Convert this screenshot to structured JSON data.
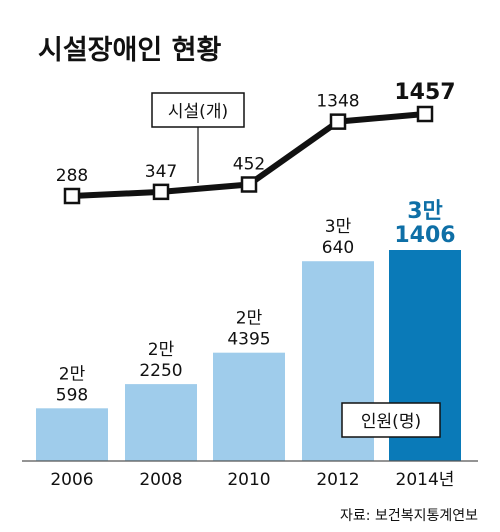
{
  "title": "시설장애인 현황",
  "source": "자료: 보건복지통계연보",
  "chart_data": [
    {
      "type": "bar",
      "series_label": "인원(명)",
      "categories": [
        "2006",
        "2008",
        "2010",
        "2012",
        "2014년"
      ],
      "values": [
        20598,
        22250,
        24395,
        30640,
        31406
      ],
      "value_labels": [
        [
          "2만",
          "598"
        ],
        [
          "2만",
          "2250"
        ],
        [
          "2만",
          "4395"
        ],
        [
          "3만",
          "640"
        ],
        [
          "3만",
          "1406"
        ]
      ],
      "colors": [
        "#9fcceb",
        "#9fcceb",
        "#9fcceb",
        "#9fcceb",
        "#0a7ab8"
      ],
      "highlight_color": "#0e6fa6"
    },
    {
      "type": "line",
      "series_label": "시설(개)",
      "categories": [
        "2006",
        "2008",
        "2010",
        "2012",
        "2014"
      ],
      "values": [
        288,
        347,
        452,
        1348,
        1457
      ],
      "value_labels": [
        "288",
        "347",
        "452",
        "1348",
        "1457"
      ],
      "line_color": "#111111",
      "marker_fill": "#ffffff"
    }
  ]
}
